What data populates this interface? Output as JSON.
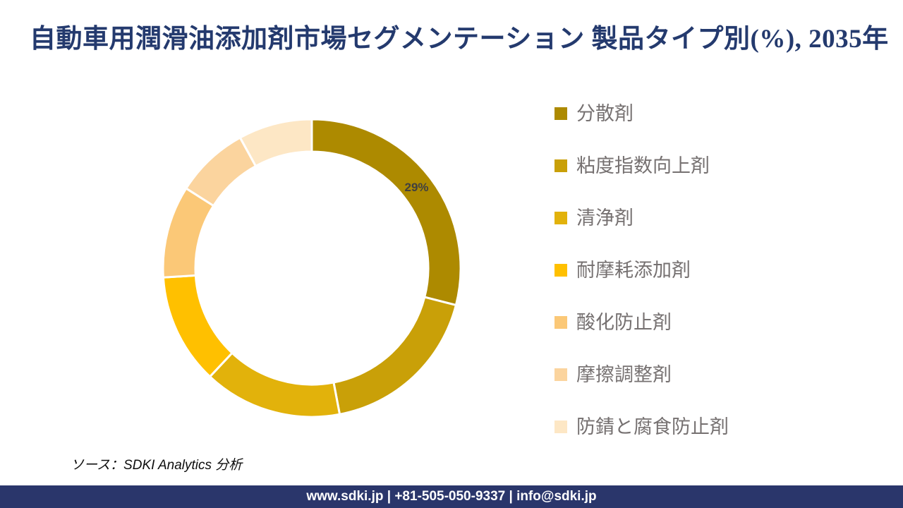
{
  "title": "自動車用潤滑油添加剤市場セグメンテーション 製品タイプ別(%), 2035年",
  "source_note": "ソース：SDKI Analytics 分析",
  "footer": {
    "text": "www.sdki.jp | +81-505-050-9337 | info@sdki.jp"
  },
  "colors": {
    "title_text": "#243a6e",
    "legend_text": "#767171",
    "data_label": "#404040",
    "slice_border": "#ffffff",
    "footer_bg": "#2a366b",
    "footer_text": "#ffffff"
  },
  "chart_data": {
    "type": "pie",
    "subtype": "donut",
    "title": "自動車用潤滑油添加剤市場セグメンテーション 製品タイプ別(%), 2035年",
    "unit": "%",
    "categories": [
      "分散剤",
      "粘度指数向上剤",
      "清浄剤",
      "耐摩耗添加剤",
      "酸化防止剤",
      "摩擦調整剤",
      "防錆と腐食防止剤"
    ],
    "values": [
      29,
      18,
      15,
      12,
      10,
      8,
      8
    ],
    "colors": [
      "#ad8a00",
      "#c9a008",
      "#e2b20b",
      "#ffc000",
      "#fbc877",
      "#fbd49e",
      "#fde7c5"
    ],
    "data_labels": [
      "29%",
      null,
      null,
      null,
      null,
      null,
      null
    ],
    "legend_position": "right",
    "start_angle_deg": 0,
    "direction": "clockwise",
    "outer_radius_px": 211,
    "inner_radius_ratio": 0.78
  }
}
